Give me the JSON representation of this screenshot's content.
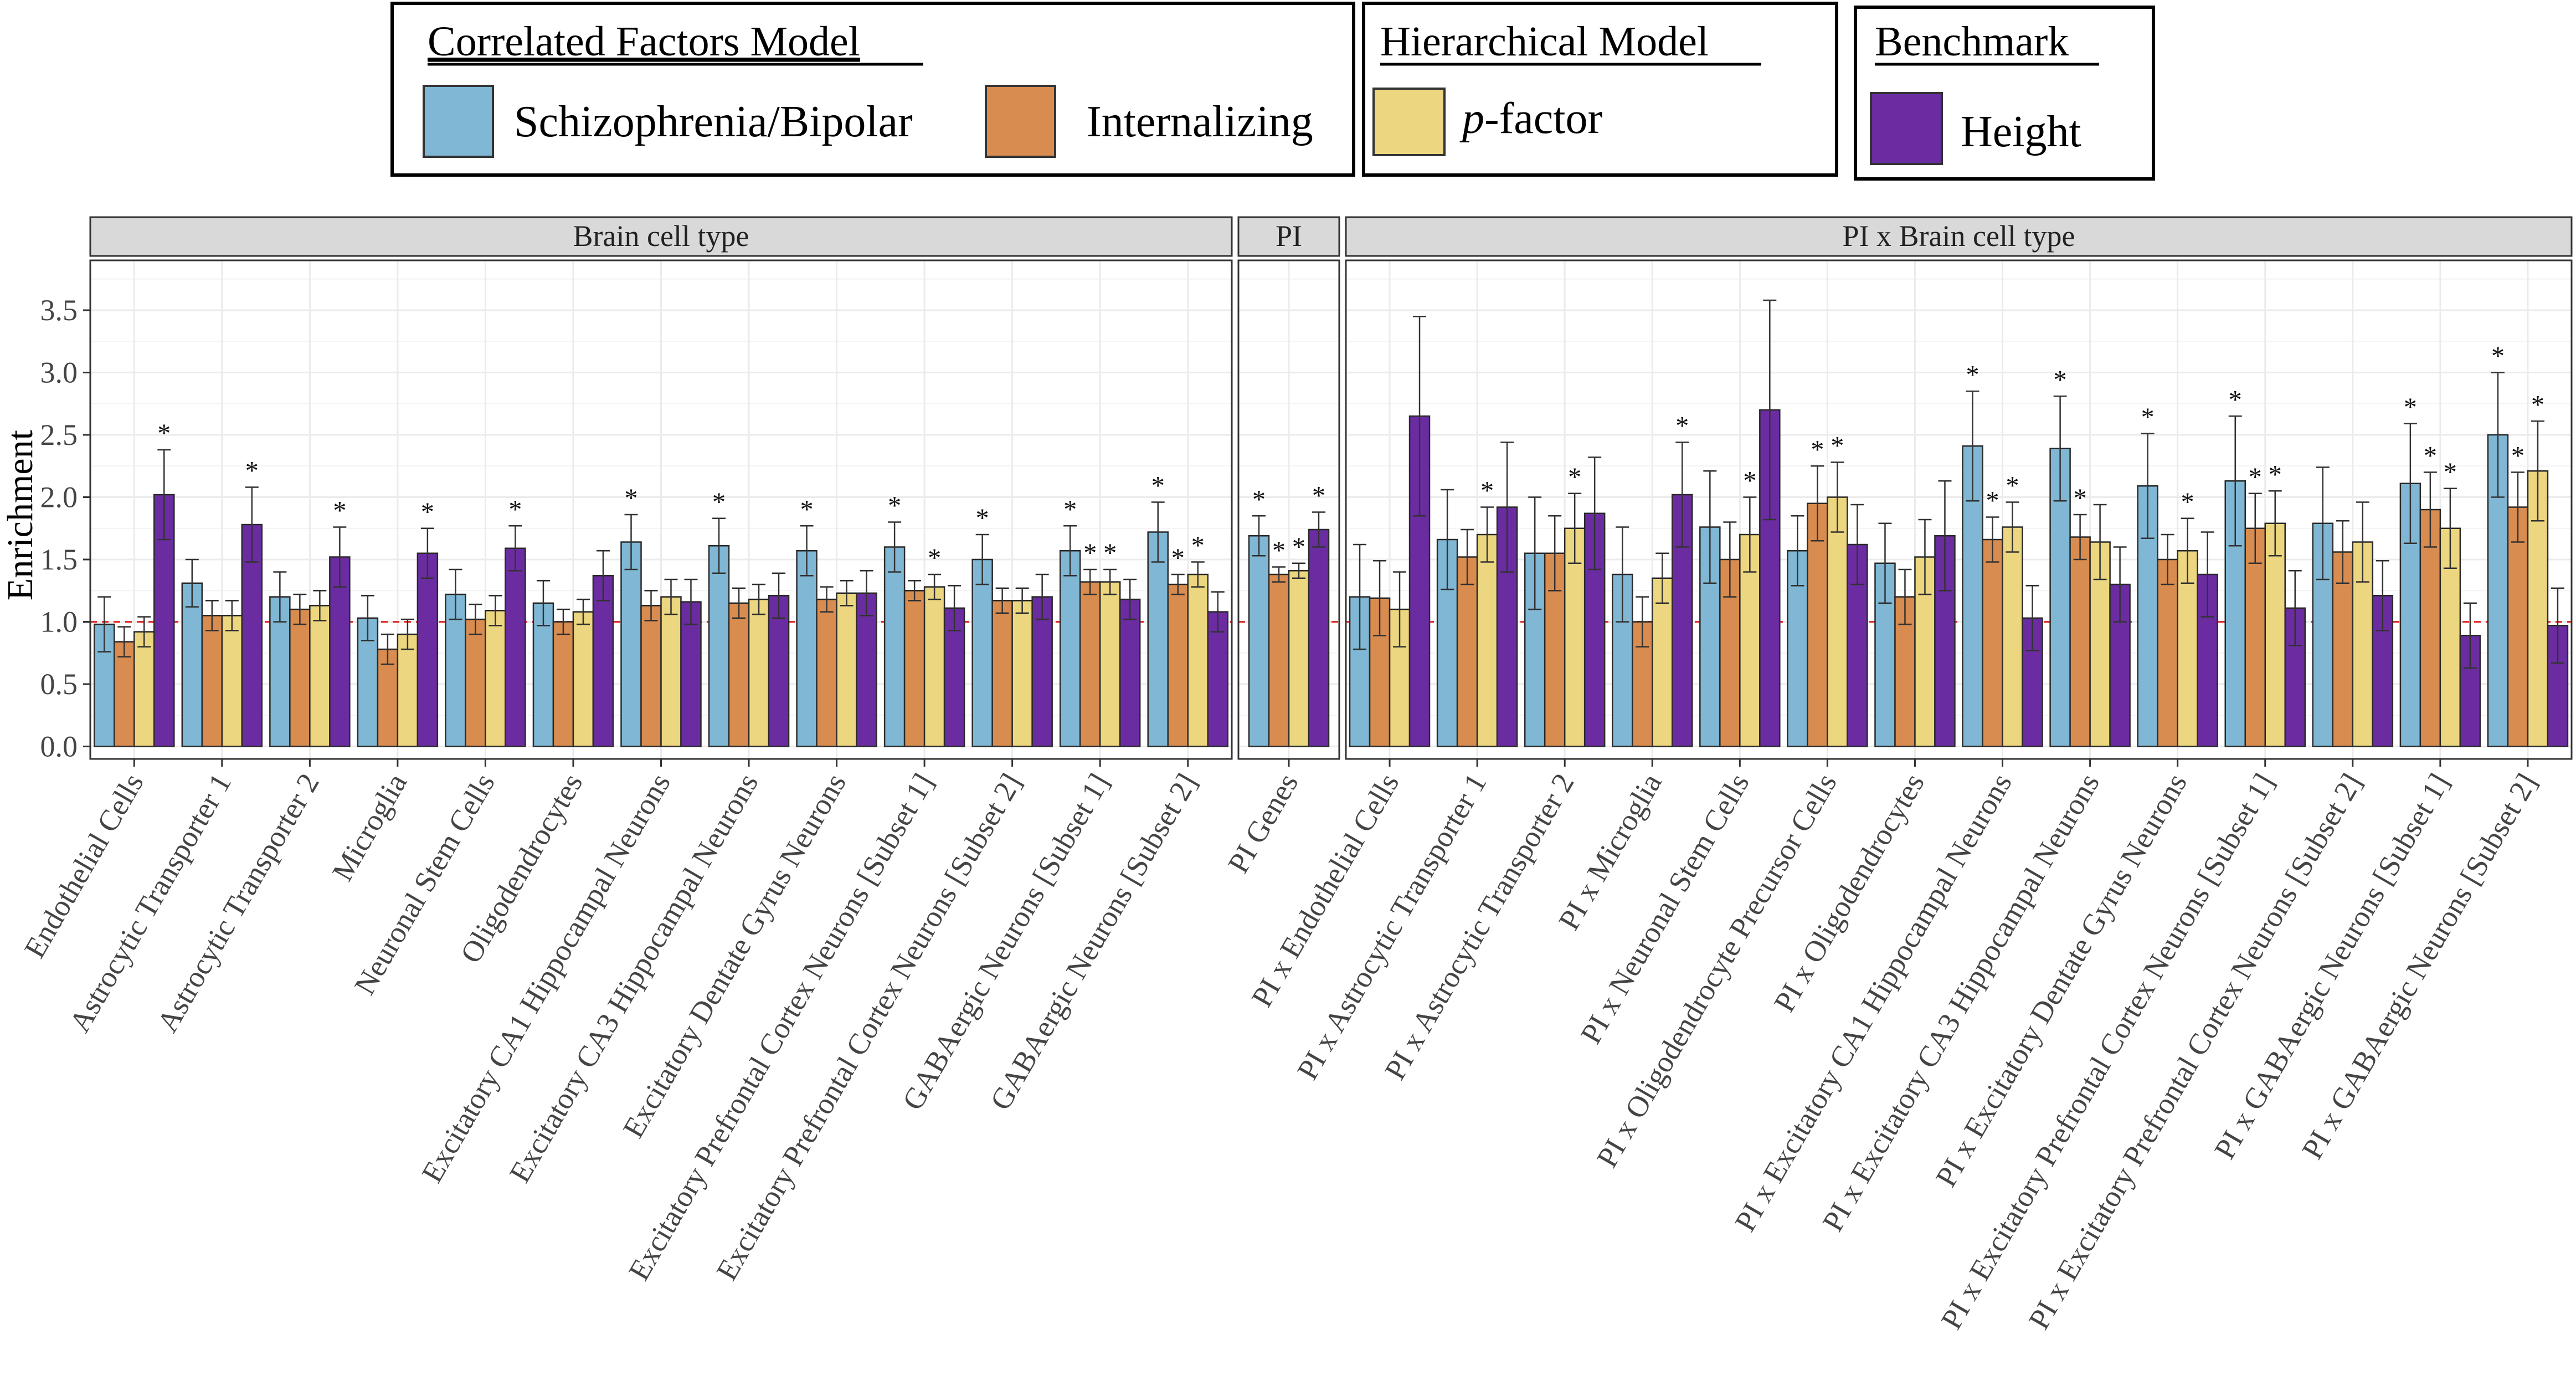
{
  "legend": {
    "groups": [
      {
        "title": "Correlated Factors Model",
        "items": [
          {
            "label": "Schizophrenia/Bipolar",
            "series": 0
          },
          {
            "label": "Internalizing",
            "series": 1
          }
        ]
      },
      {
        "title": "Hierarchical Model",
        "items": [
          {
            "label": "p-factor",
            "italic_prefix": "p",
            "suffix": "-factor",
            "series": 2
          }
        ]
      },
      {
        "title": "Benchmark",
        "items": [
          {
            "label": "Height",
            "series": 3
          }
        ]
      }
    ]
  },
  "colors": {
    "series": [
      "#7fb7d4",
      "#d98c4f",
      "#ecd67f",
      "#6a2ca0"
    ],
    "panel_strip": "#d9d9d9",
    "grid": "#ebebeb",
    "reference_line": "#e03030"
  },
  "chart_data": {
    "type": "bar",
    "ylabel": "Enrichment",
    "xlabel": "",
    "ylim": [
      -0.1,
      3.9
    ],
    "yticks": [
      0.0,
      0.5,
      1.0,
      1.5,
      2.0,
      2.5,
      3.0,
      3.5
    ],
    "ytick_labels": [
      "0.0",
      "0.5",
      "1.0",
      "1.5",
      "2.0",
      "2.5",
      "3.0",
      "3.5"
    ],
    "reference_line": 1.0,
    "grid": true,
    "significance_marker": "*",
    "series_names": [
      "Schizophrenia/Bipolar",
      "Internalizing",
      "p-factor",
      "Height"
    ],
    "panels": [
      {
        "title": "Brain cell type",
        "categories": [
          {
            "label": "Endothelial Cells",
            "values": [
              0.98,
              0.84,
              0.92,
              2.02
            ],
            "err": [
              0.22,
              0.12,
              0.12,
              0.36
            ],
            "sig": [
              false,
              false,
              false,
              true
            ]
          },
          {
            "label": "Astrocytic Transporter 1",
            "values": [
              1.31,
              1.05,
              1.05,
              1.78
            ],
            "err": [
              0.19,
              0.12,
              0.12,
              0.3
            ],
            "sig": [
              false,
              false,
              false,
              true
            ]
          },
          {
            "label": "Astrocytic Transporter 2",
            "values": [
              1.2,
              1.1,
              1.13,
              1.52
            ],
            "err": [
              0.2,
              0.12,
              0.12,
              0.24
            ],
            "sig": [
              false,
              false,
              false,
              true
            ]
          },
          {
            "label": "Microglia",
            "values": [
              1.03,
              0.78,
              0.9,
              1.55
            ],
            "err": [
              0.18,
              0.12,
              0.12,
              0.2
            ],
            "sig": [
              false,
              false,
              false,
              true
            ]
          },
          {
            "label": "Neuronal Stem Cells",
            "values": [
              1.22,
              1.02,
              1.09,
              1.59
            ],
            "err": [
              0.2,
              0.12,
              0.12,
              0.18
            ],
            "sig": [
              false,
              false,
              false,
              true
            ]
          },
          {
            "label": "Oligodendrocytes",
            "values": [
              1.15,
              1.0,
              1.08,
              1.37
            ],
            "err": [
              0.18,
              0.1,
              0.1,
              0.2
            ],
            "sig": [
              false,
              false,
              false,
              false
            ]
          },
          {
            "label": "Excitatory CA1 Hippocampal Neurons",
            "values": [
              1.64,
              1.13,
              1.2,
              1.16
            ],
            "err": [
              0.22,
              0.12,
              0.14,
              0.18
            ],
            "sig": [
              true,
              false,
              false,
              false
            ]
          },
          {
            "label": "Excitatory CA3 Hippocampal Neurons",
            "values": [
              1.61,
              1.15,
              1.18,
              1.21
            ],
            "err": [
              0.22,
              0.12,
              0.12,
              0.18
            ],
            "sig": [
              true,
              false,
              false,
              false
            ]
          },
          {
            "label": "Excitatory Dentate Gyrus Neurons",
            "values": [
              1.57,
              1.18,
              1.23,
              1.23
            ],
            "err": [
              0.2,
              0.1,
              0.1,
              0.18
            ],
            "sig": [
              true,
              false,
              false,
              false
            ]
          },
          {
            "label": "Excitatory Prefrontal Cortex Neurons [Subset 1]",
            "values": [
              1.6,
              1.25,
              1.28,
              1.11
            ],
            "err": [
              0.2,
              0.08,
              0.1,
              0.18
            ],
            "sig": [
              true,
              false,
              true,
              false
            ]
          },
          {
            "label": "Excitatory Prefrontal Cortex Neurons [Subset 2]",
            "values": [
              1.5,
              1.17,
              1.17,
              1.2
            ],
            "err": [
              0.2,
              0.1,
              0.1,
              0.18
            ],
            "sig": [
              true,
              false,
              false,
              false
            ]
          },
          {
            "label": "GABAergic Neurons [Subset 1]",
            "values": [
              1.57,
              1.32,
              1.32,
              1.18
            ],
            "err": [
              0.2,
              0.1,
              0.1,
              0.16
            ],
            "sig": [
              true,
              true,
              true,
              false
            ]
          },
          {
            "label": "GABAergic Neurons [Subset 2]",
            "values": [
              1.72,
              1.3,
              1.38,
              1.08
            ],
            "err": [
              0.24,
              0.08,
              0.1,
              0.16
            ],
            "sig": [
              true,
              true,
              true,
              false
            ]
          }
        ]
      },
      {
        "title": "PI",
        "categories": [
          {
            "label": "PI Genes",
            "values": [
              1.69,
              1.38,
              1.41,
              1.74
            ],
            "err": [
              0.16,
              0.06,
              0.06,
              0.14
            ],
            "sig": [
              true,
              true,
              true,
              true
            ]
          }
        ]
      },
      {
        "title": "PI x Brain cell type",
        "categories": [
          {
            "label": "PI x Endothelial Cells",
            "values": [
              1.2,
              1.19,
              1.1,
              2.65
            ],
            "err": [
              0.42,
              0.3,
              0.3,
              0.8
            ],
            "sig": [
              false,
              false,
              false,
              false
            ]
          },
          {
            "label": "PI x Astrocytic Transporter 1",
            "values": [
              1.66,
              1.52,
              1.7,
              1.92
            ],
            "err": [
              0.4,
              0.22,
              0.22,
              0.52
            ],
            "sig": [
              false,
              false,
              true,
              false
            ]
          },
          {
            "label": "PI x Astrocytic Transporter 2",
            "values": [
              1.55,
              1.55,
              1.75,
              1.87
            ],
            "err": [
              0.45,
              0.3,
              0.28,
              0.45
            ],
            "sig": [
              false,
              false,
              true,
              false
            ]
          },
          {
            "label": "PI x Microglia",
            "values": [
              1.38,
              1.0,
              1.35,
              2.02
            ],
            "err": [
              0.38,
              0.2,
              0.2,
              0.42
            ],
            "sig": [
              false,
              false,
              false,
              true
            ]
          },
          {
            "label": "PI x Neuronal Stem Cells",
            "values": [
              1.76,
              1.5,
              1.7,
              2.7
            ],
            "err": [
              0.45,
              0.3,
              0.3,
              0.88
            ],
            "sig": [
              false,
              false,
              true,
              false
            ]
          },
          {
            "label": "PI x Oligodendrocyte Precursor Cells",
            "values": [
              1.57,
              1.95,
              2.0,
              1.62
            ],
            "err": [
              0.28,
              0.3,
              0.28,
              0.32
            ],
            "sig": [
              false,
              true,
              true,
              false
            ]
          },
          {
            "label": "PI x Oligodendrocytes",
            "values": [
              1.47,
              1.2,
              1.52,
              1.69
            ],
            "err": [
              0.32,
              0.22,
              0.3,
              0.44
            ],
            "sig": [
              false,
              false,
              false,
              false
            ]
          },
          {
            "label": "PI x Excitatory CA1 Hippocampal Neurons",
            "values": [
              2.41,
              1.66,
              1.76,
              1.03
            ],
            "err": [
              0.44,
              0.18,
              0.2,
              0.26
            ],
            "sig": [
              true,
              true,
              true,
              false
            ]
          },
          {
            "label": "PI x Excitatory CA3 Hippocampal Neurons",
            "values": [
              2.39,
              1.68,
              1.64,
              1.3
            ],
            "err": [
              0.42,
              0.18,
              0.3,
              0.3
            ],
            "sig": [
              true,
              true,
              false,
              false
            ]
          },
          {
            "label": "PI x Excitatory Dentate Gyrus Neurons",
            "values": [
              2.09,
              1.5,
              1.57,
              1.38
            ],
            "err": [
              0.42,
              0.2,
              0.26,
              0.34
            ],
            "sig": [
              true,
              false,
              true,
              false
            ]
          },
          {
            "label": "PI x Excitatory Prefrontal Cortex Neurons [Subset 1]",
            "values": [
              2.13,
              1.75,
              1.79,
              1.11
            ],
            "err": [
              0.52,
              0.28,
              0.26,
              0.3
            ],
            "sig": [
              true,
              true,
              true,
              false
            ]
          },
          {
            "label": "PI x Excitatory Prefrontal Cortex Neurons [Subset 2]",
            "values": [
              1.79,
              1.56,
              1.64,
              1.21
            ],
            "err": [
              0.45,
              0.25,
              0.32,
              0.28
            ],
            "sig": [
              false,
              false,
              false,
              false
            ]
          },
          {
            "label": "PI x GABAergic Neurons [Subset 1]",
            "values": [
              2.11,
              1.9,
              1.75,
              0.89
            ],
            "err": [
              0.48,
              0.3,
              0.32,
              0.26
            ],
            "sig": [
              true,
              true,
              true,
              false
            ]
          },
          {
            "label": "PI x GABAergic Neurons [Subset 2]",
            "values": [
              2.5,
              1.92,
              2.21,
              0.97
            ],
            "err": [
              0.5,
              0.28,
              0.4,
              0.3
            ],
            "sig": [
              true,
              true,
              true,
              false
            ]
          }
        ]
      }
    ]
  }
}
